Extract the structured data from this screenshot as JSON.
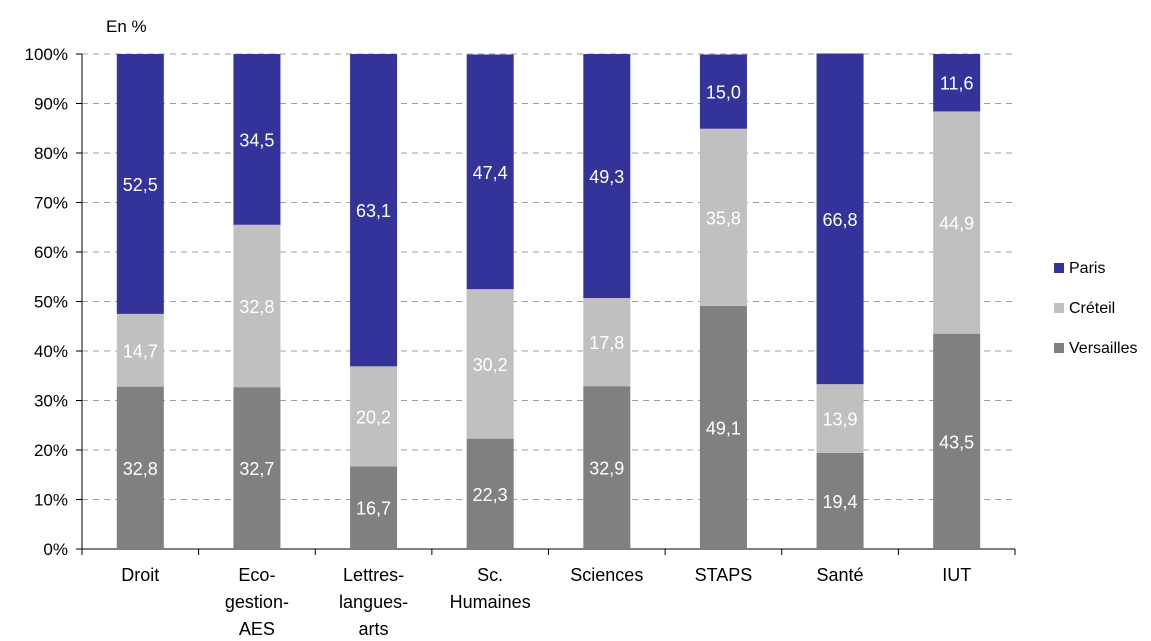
{
  "chart_data": {
    "type": "bar",
    "stacked": true,
    "percent": true,
    "unit_label": "En %",
    "categories": [
      [
        "Droit"
      ],
      [
        "Eco-",
        "gestion-",
        "AES"
      ],
      [
        "Lettres-",
        "langues-",
        "arts"
      ],
      [
        "Sc.",
        "Humaines"
      ],
      [
        "Sciences"
      ],
      [
        "STAPS"
      ],
      [
        "Santé"
      ],
      [
        "IUT"
      ]
    ],
    "series": [
      {
        "name": "Versailles",
        "color": "#808080",
        "values": [
          32.8,
          32.7,
          16.7,
          22.3,
          32.9,
          49.1,
          19.4,
          43.5
        ],
        "labels": [
          "32,8",
          "32,7",
          "16,7",
          "22,3",
          "32,9",
          "49,1",
          "19,4",
          "43,5"
        ]
      },
      {
        "name": "Créteil",
        "color": "#c0c0c0",
        "values": [
          14.7,
          32.8,
          20.2,
          30.2,
          17.8,
          35.8,
          13.9,
          44.9
        ],
        "labels": [
          "14,7",
          "32,8",
          "20,2",
          "30,2",
          "17,8",
          "35,8",
          "13,9",
          "44,9"
        ]
      },
      {
        "name": "Paris",
        "color": "#333399",
        "values": [
          52.5,
          34.5,
          63.1,
          47.4,
          49.3,
          15.0,
          66.8,
          11.6
        ],
        "labels": [
          "52,5",
          "34,5",
          "63,1",
          "47,4",
          "49,3",
          "15,0",
          "66,8",
          "11,6"
        ]
      }
    ],
    "ylim": [
      0,
      100
    ],
    "yticks": [
      "0%",
      "10%",
      "20%",
      "30%",
      "40%",
      "50%",
      "60%",
      "70%",
      "80%",
      "90%",
      "100%"
    ],
    "legend": {
      "position": "right",
      "order": [
        "Paris",
        "Créteil",
        "Versailles"
      ]
    },
    "grid": "dashed horizontal"
  }
}
